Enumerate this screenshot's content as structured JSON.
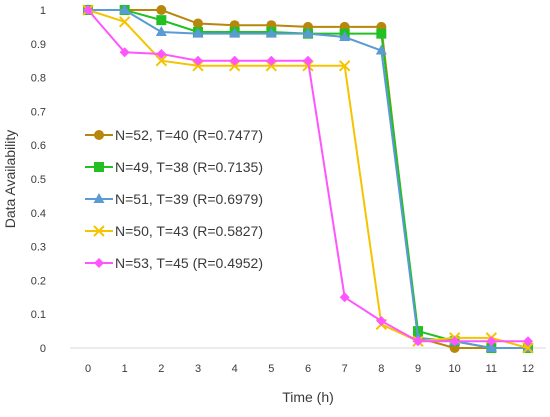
{
  "chart_data": {
    "type": "line",
    "xlabel": "Time (h)",
    "ylabel": "Data Availability",
    "x": [
      0,
      1,
      2,
      3,
      4,
      5,
      6,
      7,
      8,
      9,
      10,
      11,
      12
    ],
    "xlim": [
      0,
      12
    ],
    "ylim": [
      0,
      1
    ],
    "yticks": [
      "0",
      "0.1",
      "0.2",
      "0.3",
      "0.4",
      "0.5",
      "0.6",
      "0.7",
      "0.8",
      "0.9",
      "1"
    ],
    "xticks": [
      "0",
      "1",
      "2",
      "3",
      "4",
      "5",
      "6",
      "7",
      "8",
      "9",
      "10",
      "11",
      "12"
    ],
    "grid": false,
    "legend_position": "left",
    "series": [
      {
        "name": "N=52, T=40 (R=0.7477)",
        "color": "#b8860b",
        "marker": "circle",
        "values": [
          1.0,
          1.0,
          1.0,
          0.96,
          0.955,
          0.955,
          0.95,
          0.95,
          0.95,
          0.03,
          0.0,
          0.0,
          0.0
        ]
      },
      {
        "name": "N=49, T=38 (R=0.7135)",
        "color": "#22c022",
        "marker": "square",
        "values": [
          1.0,
          1.0,
          0.97,
          0.935,
          0.935,
          0.935,
          0.93,
          0.93,
          0.93,
          0.05,
          0.02,
          0.0,
          0.0
        ]
      },
      {
        "name": "N=51, T=39 (R=0.6979)",
        "color": "#5b9bd5",
        "marker": "triangle",
        "values": [
          1.0,
          1.0,
          0.935,
          0.93,
          0.93,
          0.93,
          0.93,
          0.92,
          0.88,
          0.03,
          0.02,
          0.0,
          0.0
        ]
      },
      {
        "name": "N=50, T=43 (R=0.5827)",
        "color": "#f5c400",
        "marker": "x",
        "values": [
          1.0,
          0.965,
          0.85,
          0.835,
          0.835,
          0.835,
          0.835,
          0.835,
          0.07,
          0.02,
          0.03,
          0.03,
          0.0
        ]
      },
      {
        "name": "N=53, T=45 (R=0.4952)",
        "color": "#ff55ff",
        "marker": "diamond",
        "values": [
          1.0,
          0.875,
          0.87,
          0.85,
          0.85,
          0.85,
          0.85,
          0.15,
          0.08,
          0.02,
          0.02,
          0.02,
          0.02
        ]
      }
    ]
  }
}
